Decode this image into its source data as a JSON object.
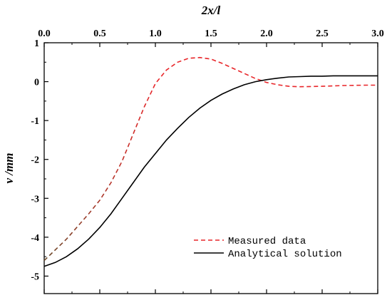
{
  "chart_data": {
    "type": "line",
    "xlabel": "2x/l",
    "ylabel": "v /mm",
    "xlim": [
      0,
      3
    ],
    "ylim": [
      -5.45,
      1
    ],
    "grid": false,
    "legend_position": "bottom-right",
    "x_ticks": [
      {
        "value": 0.0,
        "label": "0.0"
      },
      {
        "value": 0.5,
        "label": "0.5"
      },
      {
        "value": 1.0,
        "label": "1.0"
      },
      {
        "value": 1.5,
        "label": "1.5"
      },
      {
        "value": 2.0,
        "label": "2.0"
      },
      {
        "value": 2.5,
        "label": "2.5"
      },
      {
        "value": 3.0,
        "label": "3.0"
      }
    ],
    "y_ticks": [
      {
        "value": 1,
        "label": "1"
      },
      {
        "value": 0,
        "label": "0"
      },
      {
        "value": -1,
        "label": "-1"
      },
      {
        "value": -2,
        "label": "-2"
      },
      {
        "value": -3,
        "label": "-3"
      },
      {
        "value": -4,
        "label": "-4"
      },
      {
        "value": -5,
        "label": "-5"
      }
    ],
    "series": [
      {
        "name": "Measured data",
        "style": "dashed",
        "color": "#e8262a",
        "start_color": "#6b4a2a",
        "x": [
          0.0,
          0.2,
          0.4,
          0.5,
          0.6,
          0.7,
          0.8,
          0.9,
          1.0,
          1.1,
          1.2,
          1.3,
          1.4,
          1.5,
          1.6,
          1.7,
          1.8,
          1.9,
          2.0,
          2.1,
          2.2,
          2.3,
          2.5,
          2.7,
          2.9,
          3.0
        ],
        "y": [
          -4.6,
          -4.05,
          -3.4,
          -3.05,
          -2.6,
          -2.05,
          -1.35,
          -0.65,
          -0.05,
          0.3,
          0.5,
          0.6,
          0.62,
          0.58,
          0.47,
          0.34,
          0.21,
          0.08,
          -0.02,
          -0.08,
          -0.12,
          -0.13,
          -0.12,
          -0.1,
          -0.09,
          -0.09
        ]
      },
      {
        "name": "Analytical solution",
        "style": "solid",
        "color": "#000000",
        "x": [
          0.0,
          0.1,
          0.2,
          0.3,
          0.4,
          0.5,
          0.6,
          0.7,
          0.8,
          0.9,
          1.0,
          1.1,
          1.2,
          1.3,
          1.4,
          1.5,
          1.6,
          1.7,
          1.8,
          1.9,
          2.0,
          2.1,
          2.2,
          2.3,
          2.4,
          2.5,
          2.6,
          2.7,
          2.8,
          2.9,
          3.0
        ],
        "y": [
          -4.75,
          -4.65,
          -4.5,
          -4.3,
          -4.05,
          -3.75,
          -3.4,
          -3.0,
          -2.6,
          -2.2,
          -1.85,
          -1.5,
          -1.2,
          -0.92,
          -0.68,
          -0.48,
          -0.32,
          -0.19,
          -0.08,
          0.0,
          0.05,
          0.09,
          0.12,
          0.13,
          0.14,
          0.14,
          0.15,
          0.15,
          0.15,
          0.15,
          0.15
        ]
      }
    ]
  }
}
